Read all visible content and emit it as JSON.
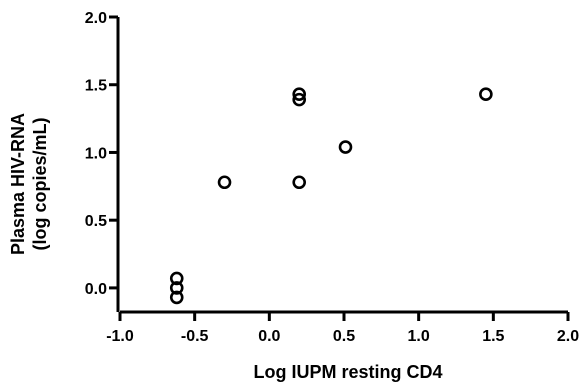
{
  "chart_data": {
    "type": "scatter",
    "title": "",
    "xlabel": "Log IUPM resting CD4",
    "ylabel_lines": [
      "Plasma HIV-RNA",
      "(log copies/mL)"
    ],
    "xlim": [
      -1.0,
      2.0
    ],
    "ylim": [
      -0.2,
      2.0
    ],
    "x_ticks": [
      -1.0,
      -0.5,
      0.0,
      0.5,
      1.0,
      1.5,
      2.0
    ],
    "x_tick_labels": [
      "-1.0",
      "-0.5",
      "0.0",
      "0.5",
      "1.0",
      "1.5",
      "2.0"
    ],
    "y_ticks": [
      0.0,
      0.5,
      1.0,
      1.5,
      2.0
    ],
    "y_tick_labels": [
      "0.0",
      "0.5",
      "1.0",
      "1.5",
      "2.0"
    ],
    "grid": false,
    "series": [
      {
        "marker": "open-circle",
        "color": "#000000",
        "points": [
          {
            "x": -0.62,
            "y": 0.07
          },
          {
            "x": -0.62,
            "y": 0.0
          },
          {
            "x": -0.62,
            "y": -0.07
          },
          {
            "x": -0.3,
            "y": 0.78
          },
          {
            "x": 0.2,
            "y": 1.43
          },
          {
            "x": 0.2,
            "y": 1.39
          },
          {
            "x": 0.2,
            "y": 0.78
          },
          {
            "x": 0.51,
            "y": 1.04
          },
          {
            "x": 1.45,
            "y": 1.43
          }
        ]
      }
    ]
  }
}
